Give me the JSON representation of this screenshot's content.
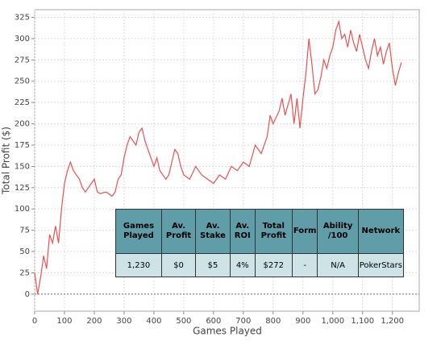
{
  "chart_data": {
    "type": "line",
    "xlabel": "Games Played",
    "ylabel": "Total Profit ($)",
    "x": [
      0,
      10,
      20,
      30,
      40,
      50,
      60,
      70,
      80,
      90,
      100,
      110,
      120,
      130,
      140,
      150,
      160,
      170,
      180,
      190,
      200,
      210,
      220,
      240,
      260,
      270,
      280,
      290,
      300,
      310,
      320,
      340,
      350,
      360,
      370,
      380,
      390,
      400,
      410,
      420,
      430,
      440,
      450,
      460,
      470,
      480,
      490,
      500,
      520,
      540,
      550,
      560,
      580,
      600,
      620,
      640,
      660,
      680,
      700,
      720,
      740,
      760,
      780,
      790,
      800,
      820,
      830,
      840,
      860,
      870,
      880,
      890,
      900,
      910,
      920,
      930,
      940,
      950,
      960,
      970,
      980,
      990,
      1000,
      1010,
      1020,
      1030,
      1040,
      1050,
      1060,
      1070,
      1080,
      1090,
      1100,
      1110,
      1120,
      1130,
      1140,
      1150,
      1160,
      1170,
      1180,
      1190,
      1200,
      1210,
      1220,
      1230
    ],
    "series": [
      {
        "color": "#ef4f4f",
        "values": [
          25,
          0,
          20,
          45,
          30,
          70,
          60,
          80,
          60,
          100,
          130,
          145,
          155,
          145,
          140,
          135,
          125,
          120,
          125,
          130,
          135,
          120,
          118,
          120,
          115,
          120,
          135,
          140,
          160,
          175,
          185,
          175,
          190,
          195,
          180,
          170,
          160,
          150,
          160,
          145,
          140,
          135,
          140,
          155,
          170,
          165,
          150,
          140,
          135,
          150,
          145,
          140,
          135,
          130,
          140,
          135,
          150,
          145,
          155,
          150,
          175,
          165,
          185,
          210,
          200,
          215,
          230,
          210,
          235,
          200,
          230,
          195,
          230,
          260,
          300,
          270,
          235,
          240,
          255,
          275,
          265,
          280,
          290,
          310,
          320,
          300,
          305,
          290,
          310,
          295,
          285,
          305,
          290,
          275,
          265,
          285,
          300,
          280,
          290,
          270,
          285,
          295,
          265,
          245,
          260,
          272
        ]
      }
    ],
    "xlim": [
      0,
      1290
    ],
    "ylim": [
      -20,
      334
    ],
    "xticks": [
      0,
      100,
      200,
      300,
      400,
      500,
      600,
      700,
      800,
      900,
      {
        "value": 1000,
        "label": "1,000"
      },
      {
        "value": 1100,
        "label": "1,100"
      },
      {
        "value": 1200,
        "label": "1,200"
      }
    ],
    "yticks": [
      0,
      25,
      50,
      75,
      100,
      125,
      150,
      175,
      200,
      225,
      250,
      275,
      300,
      325
    ],
    "grid": true,
    "table": {
      "headers": [
        "Games Played",
        "Av. Profit",
        "Av. Stake",
        "Av. ROI",
        "Total Profit",
        "Form",
        "Ability /100",
        "Network"
      ],
      "rows": [
        [
          "1,230",
          "$0",
          "$5",
          "4%",
          "$272",
          "-",
          "N/A",
          "PokerStars"
        ]
      ]
    }
  }
}
